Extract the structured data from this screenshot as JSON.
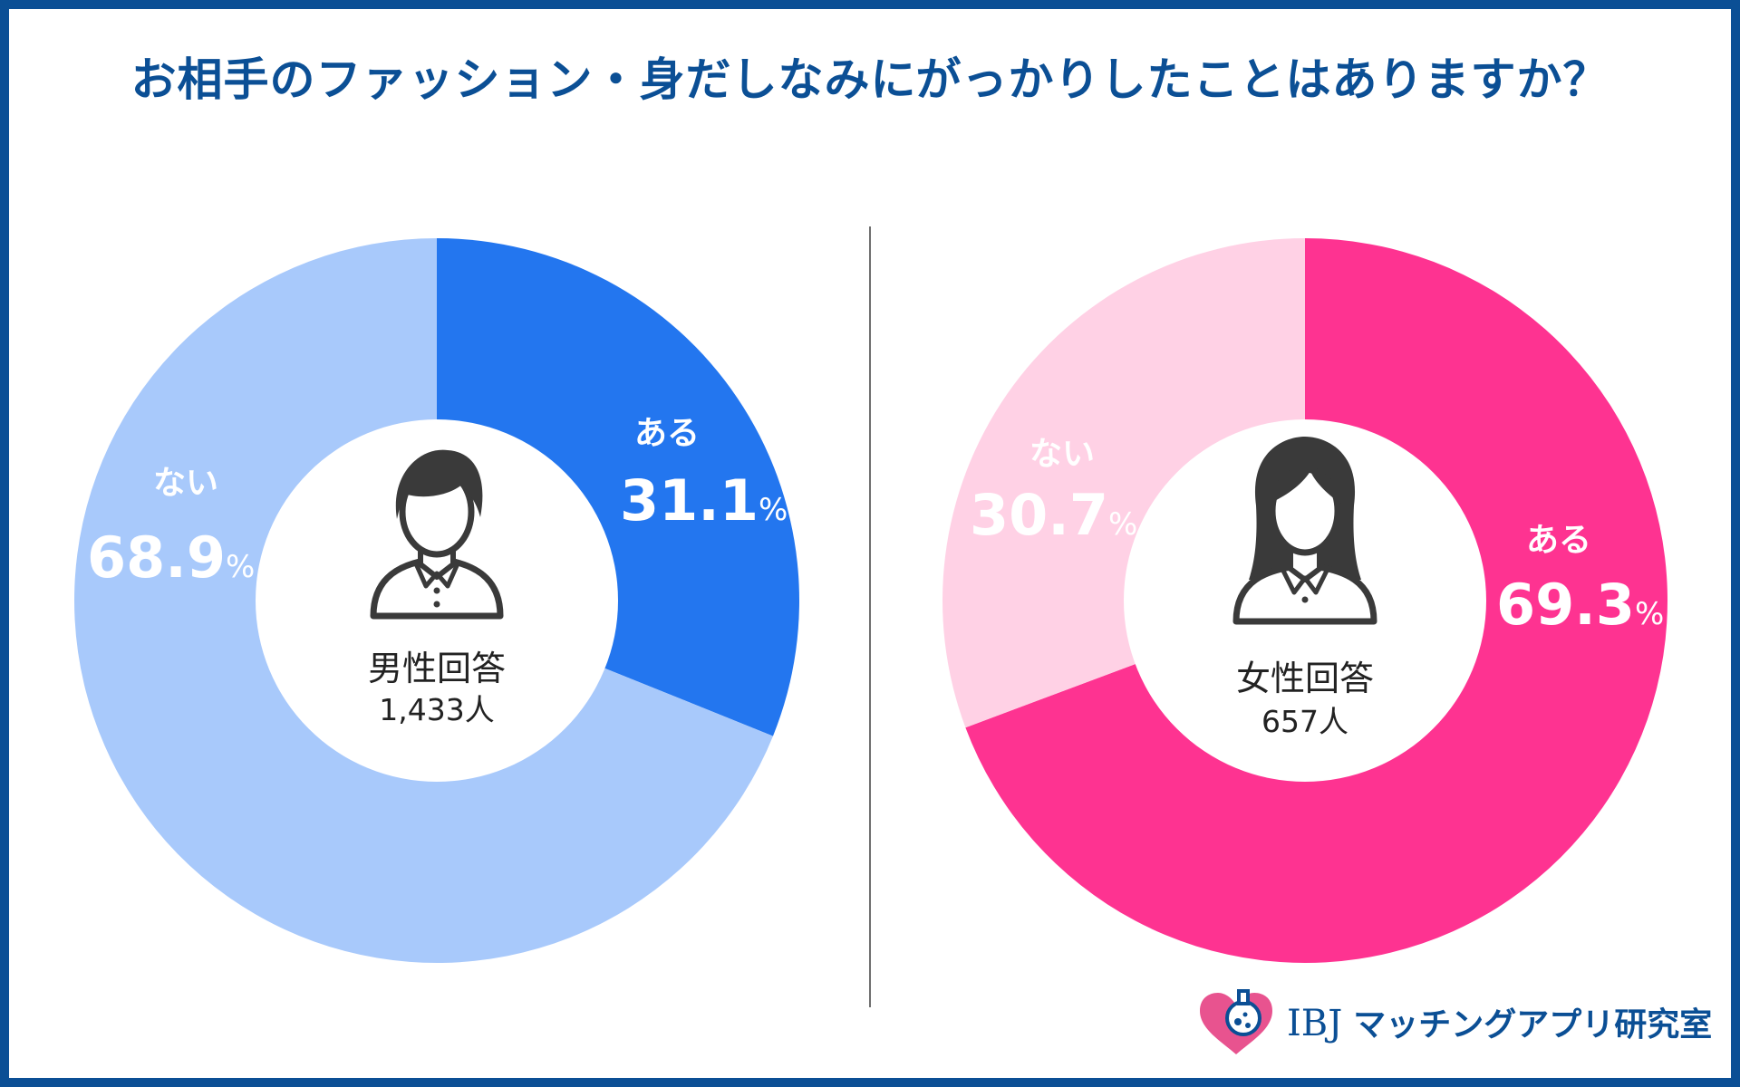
{
  "title": "お相手のファッション・身だしなみにがっかりしたことはありますか？",
  "colors": {
    "frame": "#0b4f95",
    "male_yes": "#2376ef",
    "male_no": "#a8c9fb",
    "female_yes": "#fe3391",
    "female_no": "#ffd1e5"
  },
  "chart_data": [
    {
      "type": "pie",
      "name": "male",
      "center_label": "男性回答",
      "center_count": "1,433人",
      "icon": "male-avatar-icon",
      "slices": [
        {
          "label": "ある",
          "value": 31.1,
          "display": "31.1",
          "unit": "%"
        },
        {
          "label": "ない",
          "value": 68.9,
          "display": "68.9",
          "unit": "%"
        }
      ]
    },
    {
      "type": "pie",
      "name": "female",
      "center_label": "女性回答",
      "center_count": "657人",
      "icon": "female-avatar-icon",
      "slices": [
        {
          "label": "ある",
          "value": 69.3,
          "display": "69.3",
          "unit": "%"
        },
        {
          "label": "ない",
          "value": 30.7,
          "display": "30.7",
          "unit": "%"
        }
      ]
    }
  ],
  "logo": {
    "brand": "IBJ",
    "name": "マッチングアプリ研究室"
  }
}
